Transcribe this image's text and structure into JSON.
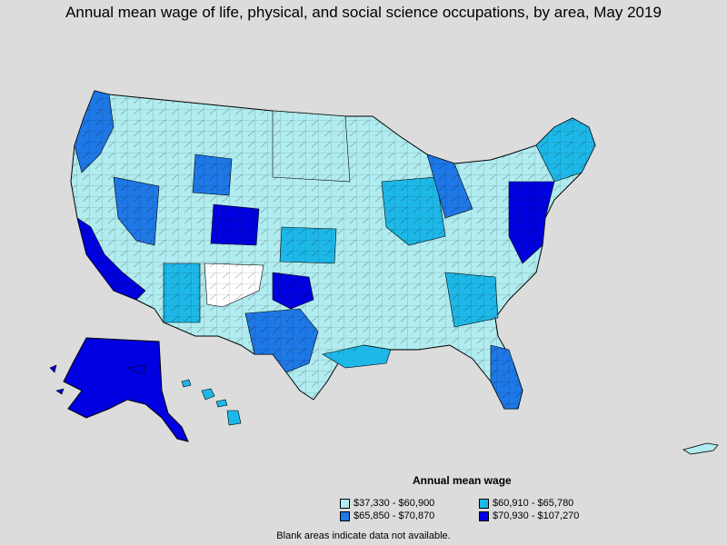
{
  "title": "Annual mean wage of life, physical, and social science occupations, by area, May 2019",
  "legend": {
    "title": "Annual mean wage",
    "items": [
      {
        "label": "$37,330 - $60,900",
        "color": "#b0ecf0"
      },
      {
        "label": "$60,910 - $65,780",
        "color": "#1eb8e8"
      },
      {
        "label": "$65,850 - $70,870",
        "color": "#1e78e6"
      },
      {
        "label": "$70,930 - $107,270",
        "color": "#0000e0"
      }
    ]
  },
  "note": "Blank areas indicate data not available.",
  "colors": {
    "background": "#dcdcdc",
    "no_data": "#ffffff",
    "border": "#000000"
  }
}
